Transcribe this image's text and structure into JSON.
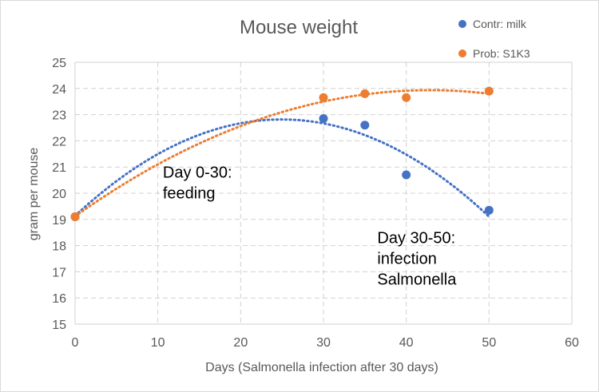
{
  "chart_data": {
    "type": "scatter",
    "title": "Mouse weight",
    "xlabel": "Days (Salmonella infection after 30 days)",
    "ylabel": "gram per mouse",
    "xlim": [
      0,
      60
    ],
    "ylim": [
      15,
      25
    ],
    "xticks": [
      0,
      10,
      20,
      30,
      40,
      50,
      60
    ],
    "yticks": [
      15,
      16,
      17,
      18,
      19,
      20,
      21,
      22,
      23,
      24,
      25
    ],
    "grid": true,
    "legend_position": "top-right",
    "series": [
      {
        "name": "Contr: milk",
        "color": "#4472C4",
        "x": [
          0,
          30,
          35,
          40,
          50
        ],
        "y": [
          19.1,
          22.85,
          22.6,
          20.7,
          19.35
        ],
        "trendline": "polynomial"
      },
      {
        "name": "Prob: S1K3",
        "color": "#ED7D31",
        "x": [
          0,
          30,
          35,
          40,
          50
        ],
        "y": [
          19.1,
          23.65,
          23.8,
          23.65,
          23.9
        ],
        "trendline": "polynomial"
      }
    ],
    "annotations": [
      {
        "lines": [
          "Day 0-30:",
          "feeding"
        ],
        "x": 10.6,
        "y": 20.6
      },
      {
        "lines": [
          "Day 30-50:",
          "infection",
          "Salmonella"
        ],
        "x": 36.5,
        "y": 18.1
      }
    ]
  }
}
